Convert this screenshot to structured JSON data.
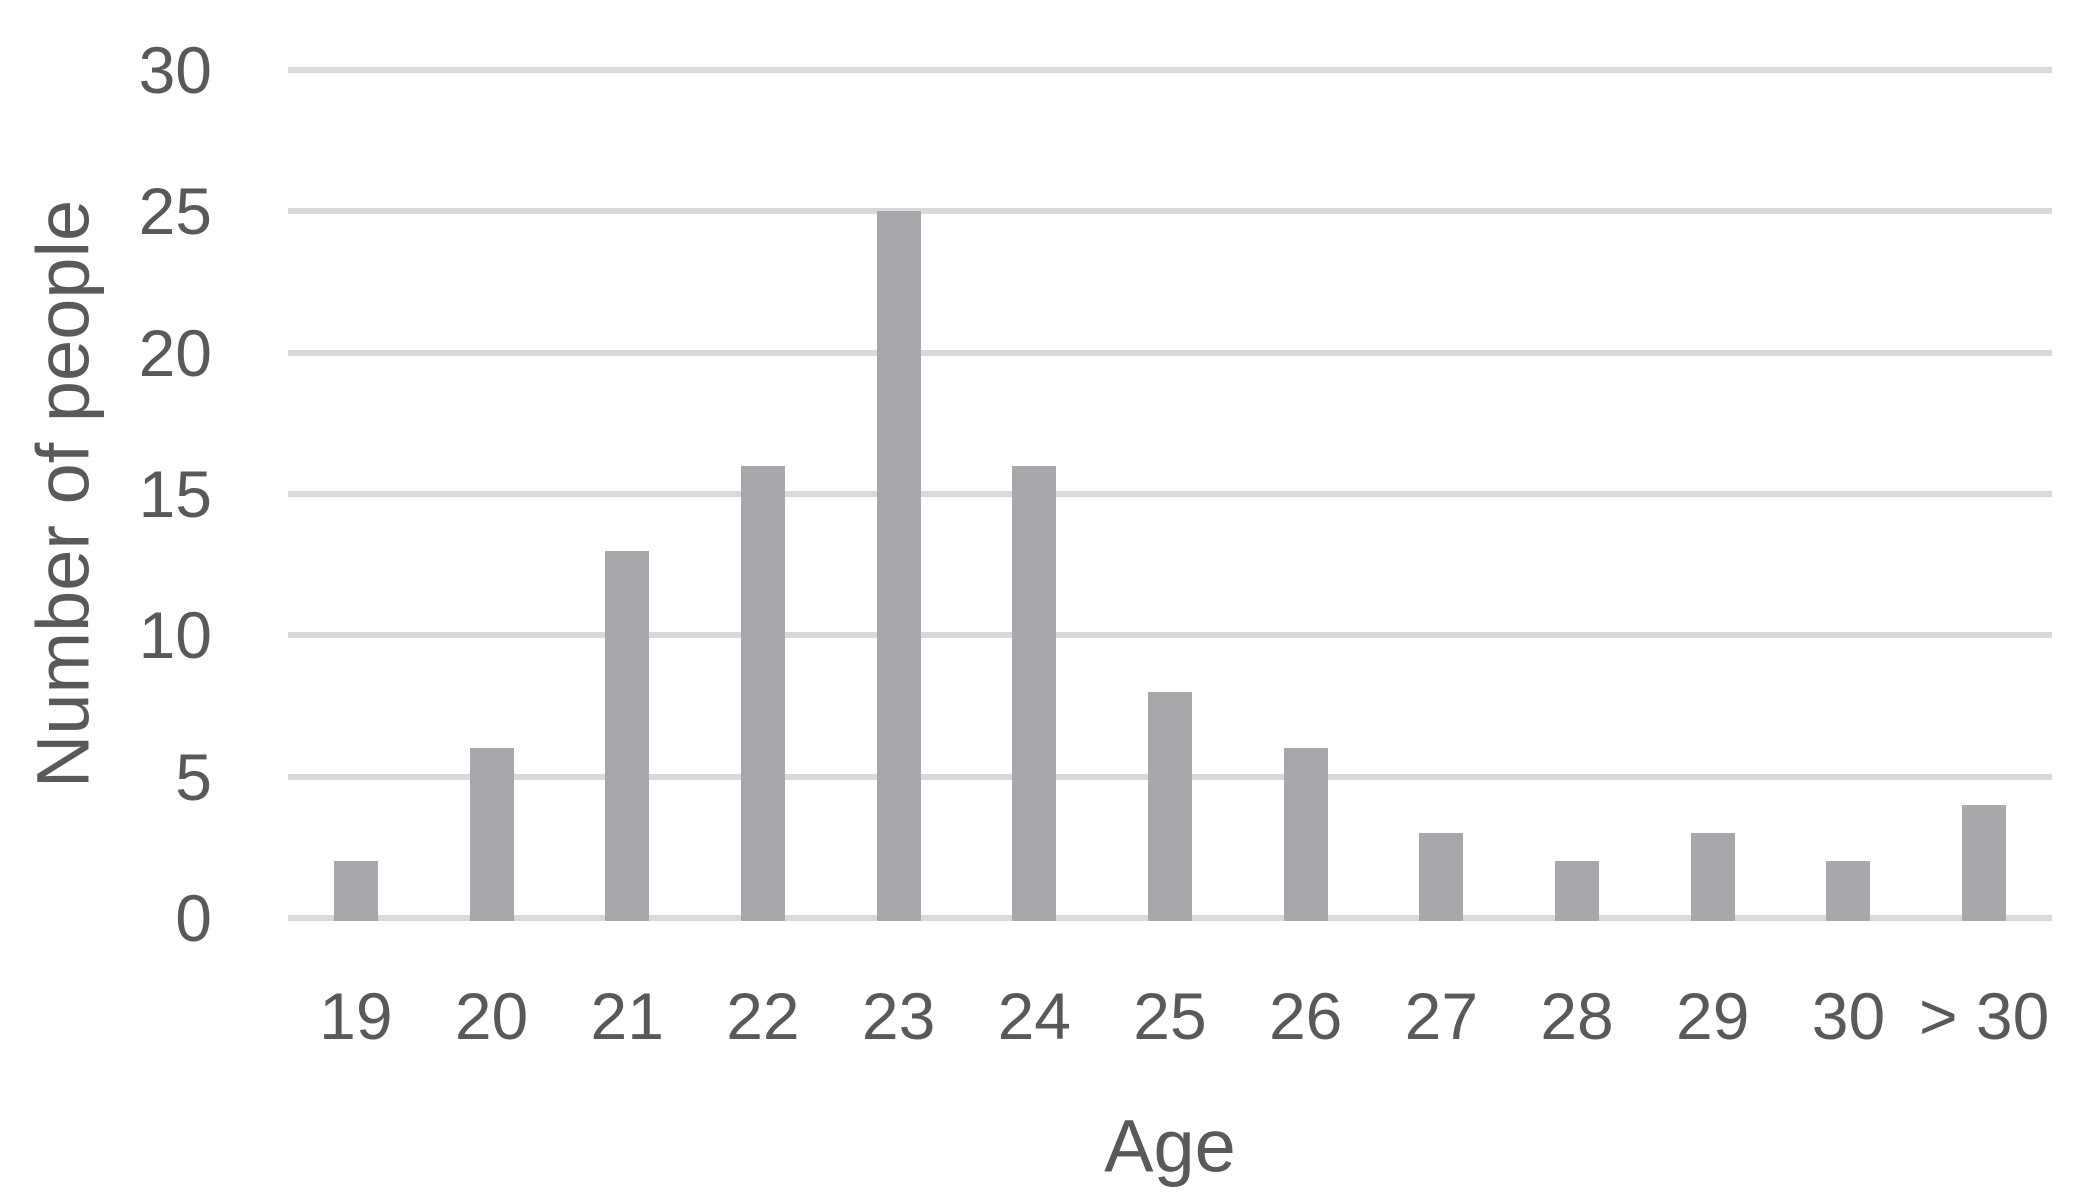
{
  "chart_data": {
    "type": "bar",
    "categories": [
      "19",
      "20",
      "21",
      "22",
      "23",
      "24",
      "25",
      "26",
      "27",
      "28",
      "29",
      "30",
      "> 30"
    ],
    "values": [
      2,
      6,
      13,
      16,
      25,
      16,
      8,
      6,
      3,
      2,
      3,
      2,
      4
    ],
    "title": "",
    "xlabel": "Age",
    "ylabel": "Number of people",
    "ylim": [
      0,
      30
    ],
    "yticks": [
      0,
      5,
      10,
      15,
      20,
      25,
      30
    ],
    "grid": "horizontal",
    "legend": "none",
    "colors": {
      "bar_fill": "#a6a8ab",
      "gridline": "#d9d9d9",
      "text": "#595959",
      "background": "#ffffff"
    }
  }
}
